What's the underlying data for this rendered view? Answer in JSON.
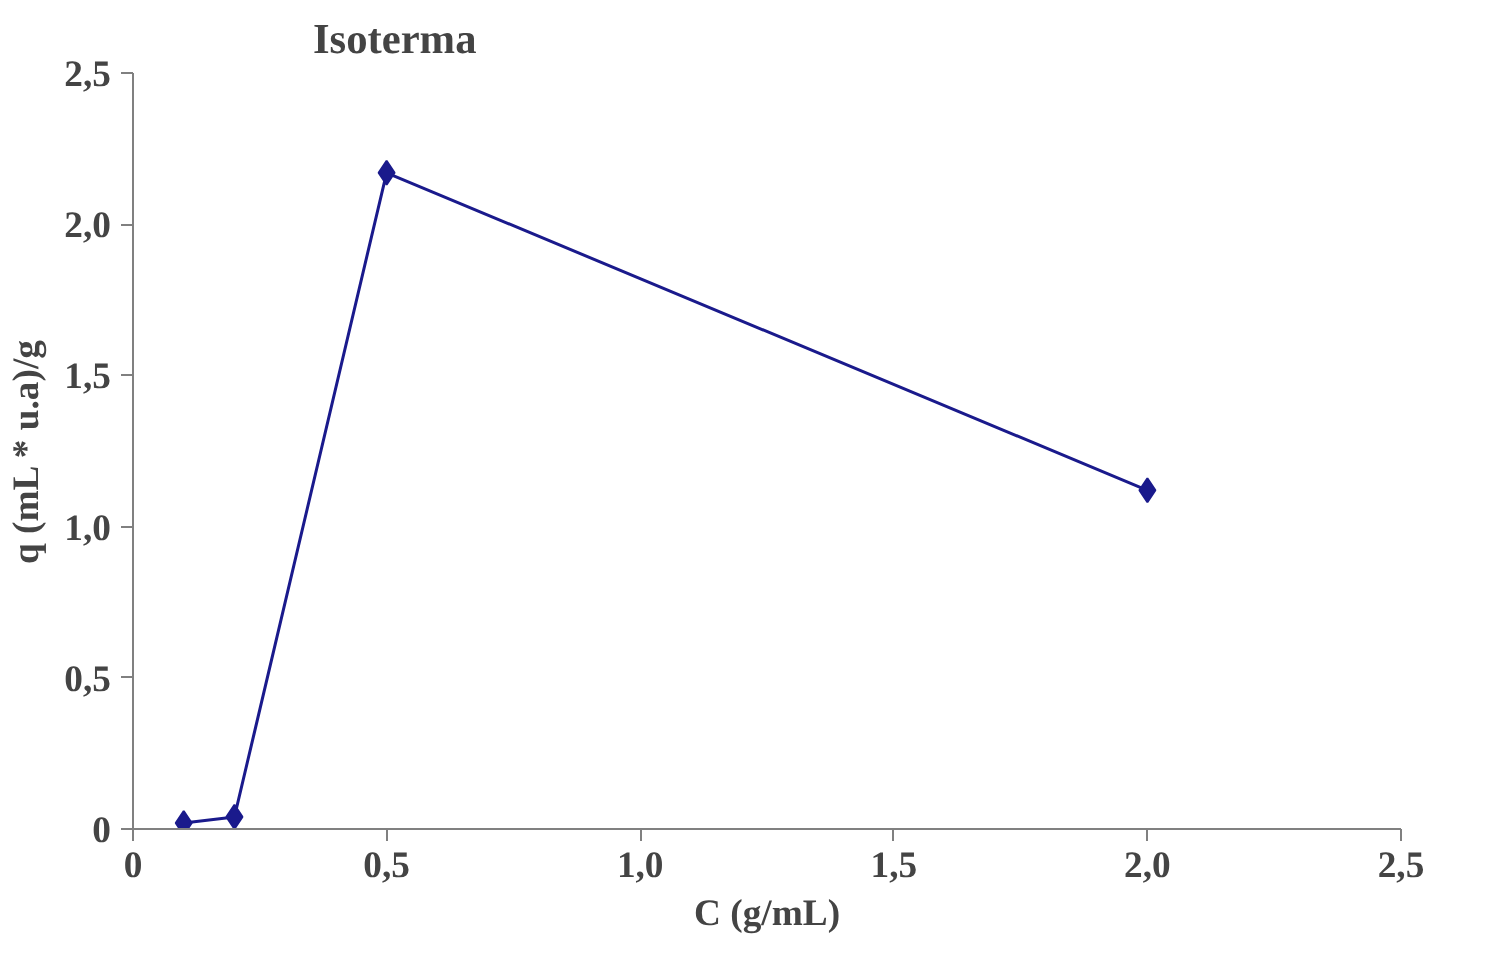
{
  "chart_data": {
    "type": "line",
    "title": "Isoterma",
    "xlabel": "C (g/mL)",
    "ylabel": "q (mL * u.a)/g",
    "x": [
      0.1,
      0.2,
      0.5,
      2.0
    ],
    "series": [
      {
        "color": "#1a1a8c",
        "values": [
          0.02,
          0.04,
          2.17,
          1.12
        ]
      }
    ],
    "marker": "diamond",
    "grid": false,
    "xlim": [
      0,
      2.5
    ],
    "ylim": [
      0,
      2.5
    ],
    "xticks": [
      0,
      {
        "value": 0.5,
        "label": "0,5"
      },
      {
        "value": 1.0,
        "label": "1,0"
      },
      {
        "value": 1.5,
        "label": "1,5"
      },
      {
        "value": 2.0,
        "label": "2,0"
      },
      {
        "value": 2.5,
        "label": "2,5"
      }
    ],
    "yticks": [
      0,
      {
        "value": 0.5,
        "label": "0,5"
      },
      {
        "value": 1.0,
        "label": "1,0"
      },
      {
        "value": 1.5,
        "label": "1,5"
      },
      {
        "value": 2.0,
        "label": "2,0"
      },
      {
        "value": 2.5,
        "label": "2,5"
      }
    ]
  }
}
